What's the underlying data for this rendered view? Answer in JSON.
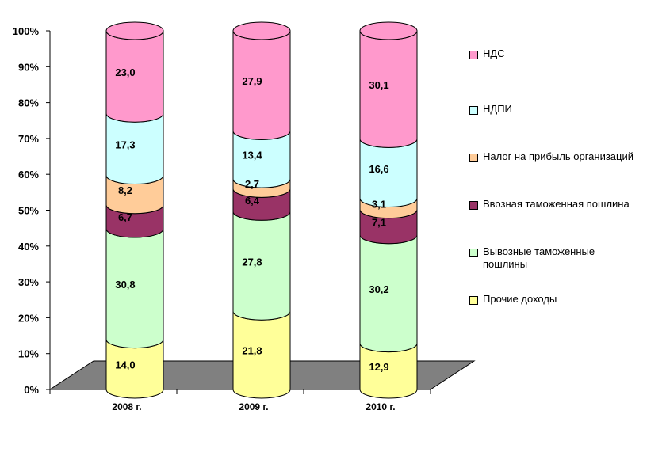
{
  "chart_data": {
    "type": "bar",
    "stacked": true,
    "percent": true,
    "categories": [
      "2008 г.",
      "2009 г.",
      "2010 г."
    ],
    "y_ticks": [
      "0%",
      "10%",
      "20%",
      "30%",
      "40%",
      "50%",
      "60%",
      "70%",
      "80%",
      "90%",
      "100%"
    ],
    "ylim": [
      0,
      100
    ],
    "legend_position": "right",
    "series": [
      {
        "name": "Прочие доходы",
        "color": "#ffff99",
        "values": [
          14.0,
          21.8,
          12.9
        ],
        "labels": [
          "14,0",
          "21,8",
          "12,9"
        ]
      },
      {
        "name": "Вывозные таможенные пошлины",
        "color": "#ccffcc",
        "values": [
          30.8,
          27.8,
          30.2
        ],
        "labels": [
          "30,8",
          "27,8",
          "30,2"
        ]
      },
      {
        "name": "Ввозная таможенная пошлина",
        "color": "#993366",
        "values": [
          6.7,
          6.4,
          7.1
        ],
        "labels": [
          "6,7",
          "6,4",
          "7,1"
        ]
      },
      {
        "name": "Налог на прибыль организаций",
        "color": "#ffcc99",
        "values": [
          8.2,
          2.7,
          3.1
        ],
        "labels": [
          "8,2",
          "2,7",
          "3,1"
        ]
      },
      {
        "name": "НДПИ",
        "color": "#ccffff",
        "values": [
          17.3,
          13.4,
          16.6
        ],
        "labels": [
          "17,3",
          "13,4",
          "16,6"
        ]
      },
      {
        "name": "НДС",
        "color": "#ff99cc",
        "values": [
          23.0,
          27.9,
          30.1
        ],
        "labels": [
          "23,0",
          "27,9",
          "30,1"
        ]
      }
    ],
    "legend_order": [
      "НДС",
      "НДПИ",
      "Налог на прибыль организаций",
      "Ввозная таможенная пошлина",
      "Вывозные таможенные пошлины",
      "Прочие доходы"
    ]
  }
}
